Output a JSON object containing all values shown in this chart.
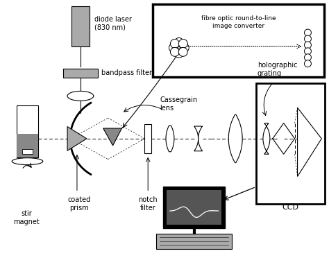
{
  "bg_color": "#ffffff",
  "lgray": "#aaaaaa",
  "dgray": "#555555",
  "mgray": "#888888",
  "components": {
    "fibre_optic_label": "fibre optic round-to-line\nimage converter",
    "diode_laser_label": "diode laser\n(830 nm)",
    "bandpass_label": "bandpass filter",
    "cassegrain_label": "Cassegrain\nlens",
    "holographic_label": "holographic\ngrating",
    "ccd_label": "CCD",
    "stir_label": "stir\nmagnet",
    "coated_label": "coated\nprism",
    "notch_label": "notch\nfilter"
  }
}
